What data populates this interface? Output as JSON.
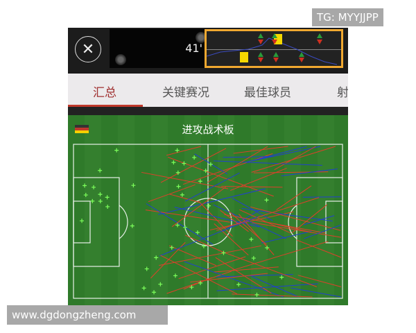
{
  "watermarks": {
    "top": "TG: MYYJJPP",
    "bottom": "www.dgdongzheng.com"
  },
  "header": {
    "minute": "41'"
  },
  "tabs": [
    {
      "label": "汇总",
      "active": true
    },
    {
      "label": "关键赛况"
    },
    {
      "label": "最佳球员"
    },
    {
      "label": "射"
    }
  ],
  "board": {
    "title": "进攻战术板"
  },
  "colors": {
    "accent": "#c0392b",
    "window": "#f0a830",
    "pass_red": "#e0402a",
    "pass_blue": "#2040d0",
    "marker_green": "#7cff5a"
  }
}
